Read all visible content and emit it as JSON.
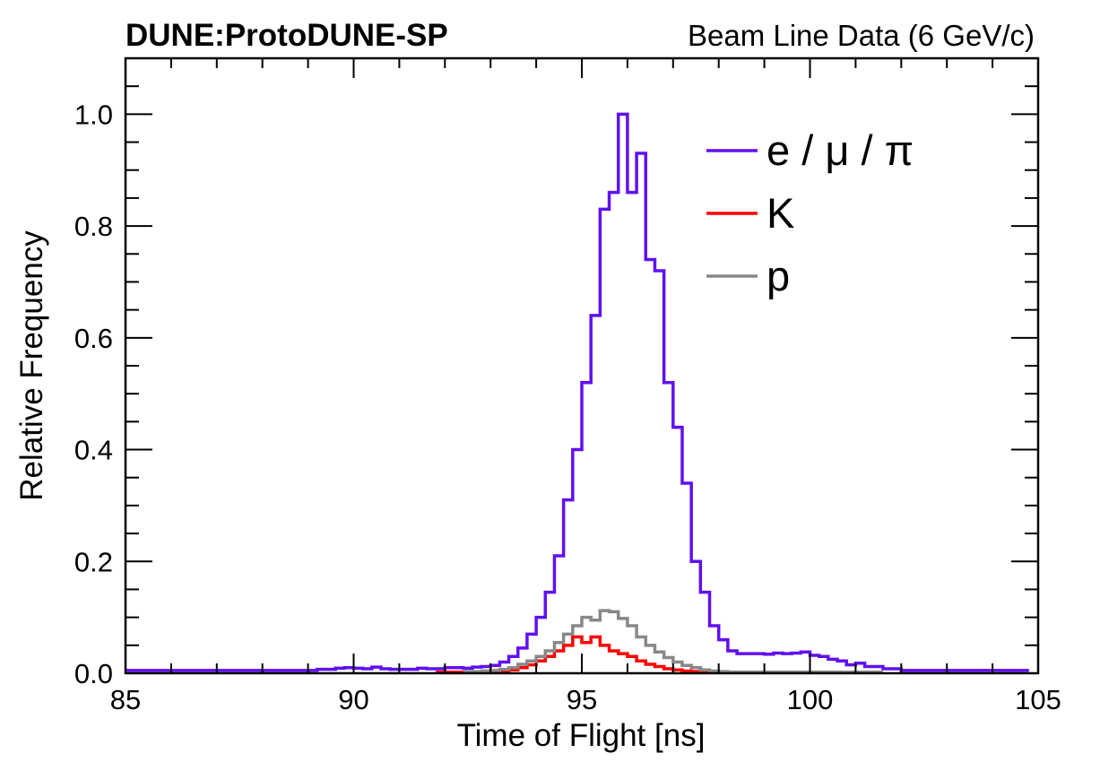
{
  "chart_data": {
    "type": "line",
    "top_left_label": "DUNE:ProtoDUNE-SP",
    "top_right_label": "Beam Line Data (6 GeV/c)",
    "xlabel": "Time of Flight [ns]",
    "ylabel": "Relative Frequency",
    "xlim": [
      85,
      105
    ],
    "ylim": [
      0,
      1.1
    ],
    "xticks": [
      "85",
      "90",
      "95",
      "100",
      "105"
    ],
    "yticks": [
      "0.0",
      "0.2",
      "0.4",
      "0.6",
      "0.8",
      "1.0"
    ],
    "legend_position": "top-right",
    "bin_width": 0.2,
    "series": [
      {
        "name": "e / μ / π",
        "color": "#6010f0",
        "bin_edges": [
          85,
          104.8
        ],
        "values": [
          0.005,
          0.005,
          0.005,
          0.005,
          0.005,
          0.005,
          0.005,
          0.005,
          0.005,
          0.005,
          0.005,
          0.005,
          0.005,
          0.005,
          0.005,
          0.005,
          0.005,
          0.005,
          0.005,
          0.005,
          0.005,
          0.007,
          0.007,
          0.009,
          0.01,
          0.009,
          0.008,
          0.011,
          0.008,
          0.007,
          0.007,
          0.007,
          0.009,
          0.008,
          0.008,
          0.01,
          0.01,
          0.009,
          0.011,
          0.012,
          0.014,
          0.02,
          0.03,
          0.045,
          0.07,
          0.1,
          0.145,
          0.21,
          0.31,
          0.4,
          0.52,
          0.64,
          0.83,
          0.86,
          1.0,
          0.86,
          0.93,
          0.74,
          0.72,
          0.52,
          0.44,
          0.34,
          0.2,
          0.145,
          0.085,
          0.06,
          0.04,
          0.035,
          0.035,
          0.035,
          0.034,
          0.036,
          0.035,
          0.036,
          0.038,
          0.032,
          0.03,
          0.025,
          0.022,
          0.015,
          0.018,
          0.012,
          0.012,
          0.008,
          0.008,
          0.005,
          0.005,
          0.005,
          0.005,
          0.005,
          0.005,
          0.005,
          0.005,
          0.005,
          0.005,
          0.005,
          0.005,
          0.005,
          0.005
        ]
      },
      {
        "name": "K",
        "color": "#ff0000",
        "bin_edges": [
          91.8,
          100.0
        ],
        "values": [
          0.002,
          0.002,
          0.002,
          0.002,
          0.002,
          0.002,
          0.003,
          0.004,
          0.006,
          0.01,
          0.015,
          0.022,
          0.03,
          0.04,
          0.05,
          0.065,
          0.055,
          0.065,
          0.05,
          0.04,
          0.035,
          0.03,
          0.022,
          0.016,
          0.012,
          0.008,
          0.006,
          0.004,
          0.003,
          0.002,
          0.002,
          0.002,
          0.002,
          0.002,
          0.002,
          0.002,
          0.002,
          0.002,
          0.002,
          0.002,
          0.002
        ]
      },
      {
        "name": "p",
        "color": "#888888",
        "bin_edges": [
          92.4,
          101.6
        ],
        "values": [
          0.003,
          0.003,
          0.004,
          0.005,
          0.007,
          0.01,
          0.016,
          0.022,
          0.03,
          0.04,
          0.055,
          0.07,
          0.085,
          0.1,
          0.095,
          0.112,
          0.11,
          0.098,
          0.085,
          0.065,
          0.05,
          0.038,
          0.028,
          0.02,
          0.014,
          0.01,
          0.006,
          0.004,
          0.003,
          0.002,
          0.002,
          0.002,
          0.002,
          0.002,
          0.002,
          0.002,
          0.002,
          0.002,
          0.002,
          0.002,
          0.002,
          0.002,
          0.002,
          0.002,
          0.002,
          0.002
        ]
      }
    ]
  }
}
